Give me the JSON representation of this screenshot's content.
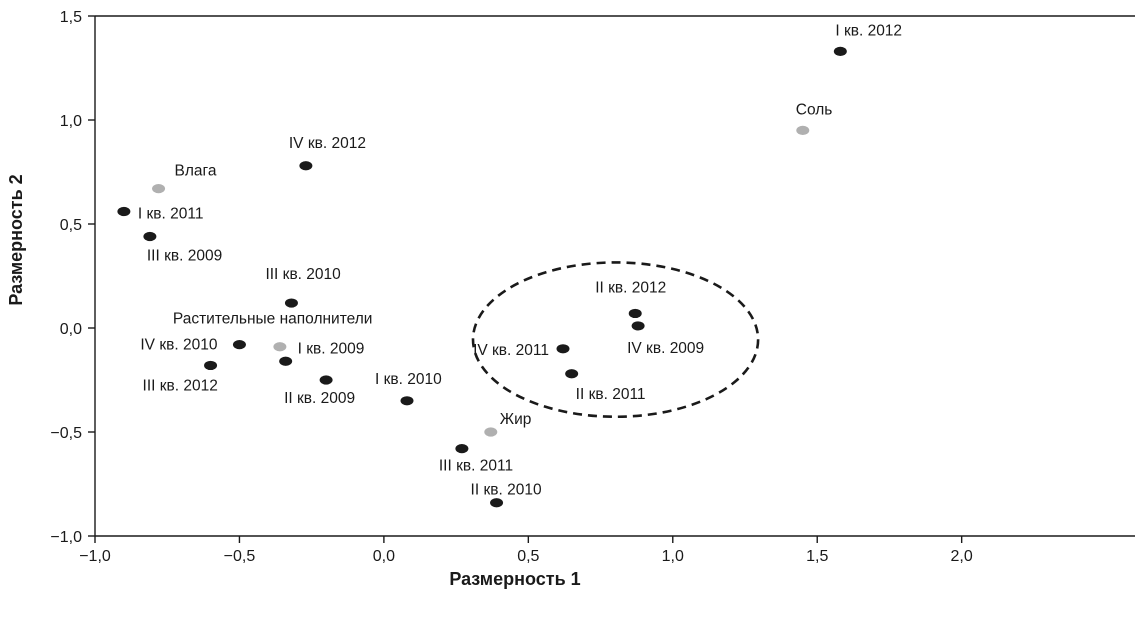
{
  "chart_data": {
    "type": "scatter",
    "xlabel": "Размерность 1",
    "ylabel": "Размерность 2",
    "xlim": [
      -1.0,
      2.6
    ],
    "ylim": [
      -1.0,
      1.5
    ],
    "x_ticks": [
      -1.0,
      -0.5,
      0.0,
      0.5,
      1.0,
      1.5,
      2.0
    ],
    "x_tick_labels": [
      "−1,0",
      "−0,5",
      "0,0",
      "0,5",
      "1,0",
      "1,5",
      "2,0"
    ],
    "y_ticks": [
      -1.0,
      -0.5,
      0.0,
      0.5,
      1.0,
      1.5
    ],
    "y_tick_labels": [
      "−1,0",
      "−0,5",
      "0,0",
      "0,5",
      "1,0",
      "1,5"
    ],
    "grid": false,
    "colors": {
      "period": "#1a1a1a",
      "attribute": "#b0b0b0"
    },
    "series": [
      {
        "group": "period",
        "points": [
          {
            "label": "I кв. 2012",
            "x": 1.58,
            "y": 1.33
          },
          {
            "label": "IV кв. 2012",
            "x": -0.27,
            "y": 0.78
          },
          {
            "label": "I кв. 2011",
            "x": -0.9,
            "y": 0.56
          },
          {
            "label": "III кв. 2009",
            "x": -0.81,
            "y": 0.44
          },
          {
            "label": "III кв. 2010",
            "x": -0.32,
            "y": 0.12
          },
          {
            "label": "IV кв. 2010",
            "x": -0.5,
            "y": -0.08
          },
          {
            "label": "III кв. 2012",
            "x": -0.6,
            "y": -0.18
          },
          {
            "label": "I кв. 2009",
            "x": -0.34,
            "y": -0.16
          },
          {
            "label": "II кв. 2009",
            "x": -0.2,
            "y": -0.25
          },
          {
            "label": "I кв. 2010",
            "x": 0.08,
            "y": -0.35
          },
          {
            "label": "III кв. 2011",
            "x": 0.27,
            "y": -0.58
          },
          {
            "label": "II кв. 2010",
            "x": 0.39,
            "y": -0.84
          },
          {
            "label": "II кв. 2012",
            "x": 0.87,
            "y": 0.07
          },
          {
            "label": "IV кв. 2009",
            "x": 0.88,
            "y": 0.01
          },
          {
            "label": "IV кв. 2011",
            "x": 0.62,
            "y": -0.1
          },
          {
            "label": "II кв. 2011",
            "x": 0.65,
            "y": -0.22
          }
        ]
      },
      {
        "group": "attribute",
        "points": [
          {
            "label": "Соль",
            "x": 1.45,
            "y": 0.95
          },
          {
            "label": "Влага",
            "x": -0.78,
            "y": 0.67
          },
          {
            "label": "Растительные наполнители",
            "x": -0.36,
            "y": -0.09
          },
          {
            "label": "Жир",
            "x": 0.37,
            "y": -0.5
          }
        ]
      }
    ],
    "annotations": [
      {
        "type": "dashed-ellipse",
        "encloses": [
          "II кв. 2012",
          "IV кв. 2009",
          "IV кв. 2011",
          "II кв. 2011"
        ]
      }
    ]
  }
}
